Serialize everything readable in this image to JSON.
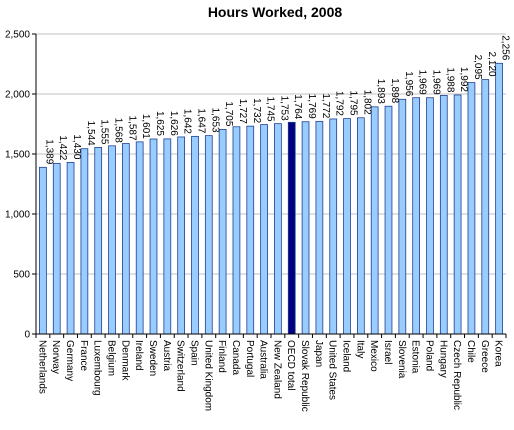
{
  "chart_data": {
    "type": "bar",
    "title": "Hours Worked, 2008",
    "xlabel": "",
    "ylabel": "",
    "ylim": [
      0,
      2500
    ],
    "yticks": [
      "0",
      "500",
      "1,000",
      "1,500",
      "2,000",
      "2,500"
    ],
    "ytick_values": [
      0,
      500,
      1000,
      1500,
      2000,
      2500
    ],
    "grid": "horizontal",
    "legend": "none",
    "categories": [
      "Netherlands",
      "Norway",
      "Germany",
      "France",
      "Luxembourg",
      "Belgium",
      "Denmark",
      "Ireland",
      "Sweden",
      "Austria",
      "Switzerland",
      "Spain",
      "United Kingdom",
      "Finland",
      "Canada",
      "Portugal",
      "Australia",
      "New Zealand",
      "OECD total",
      "Slovak Republic",
      "Japan",
      "United States",
      "Iceland",
      "Italy",
      "Mexico",
      "Israel",
      "Slovenia",
      "Estonia",
      "Poland",
      "Hungary",
      "Czech Republic",
      "Chile",
      "Greece",
      "Korea"
    ],
    "values": [
      1389,
      1422,
      1430,
      1544,
      1555,
      1568,
      1587,
      1601,
      1625,
      1626,
      1642,
      1647,
      1653,
      1705,
      1727,
      1732,
      1745,
      1753,
      1764,
      1769,
      1772,
      1792,
      1795,
      1802,
      1893,
      1898,
      1956,
      1969,
      1969,
      1988,
      1992,
      2095,
      2120,
      2256
    ],
    "data_labels": [
      "1,389",
      "1,422",
      "1,430",
      "1,544",
      "1,555",
      "1,568",
      "1,587",
      "1,601",
      "1,625",
      "1,626",
      "1,642",
      "1,647",
      "1,653",
      "1,705",
      "1,727",
      "1,732",
      "1,745",
      "1,753",
      "1,764",
      "1,769",
      "1,772",
      "1,792",
      "1,795",
      "1,802",
      "1,893",
      "1,898",
      "1,956",
      "1,969",
      "1,969",
      "1,988",
      "1,992",
      "2,095",
      "2,120",
      "2,256"
    ],
    "highlight_category": "OECD total",
    "colors": {
      "bar": "#99ccff",
      "bar_stroke": "#1f3f8f",
      "highlight": "#000080",
      "grid": "#c0c0c0"
    }
  }
}
